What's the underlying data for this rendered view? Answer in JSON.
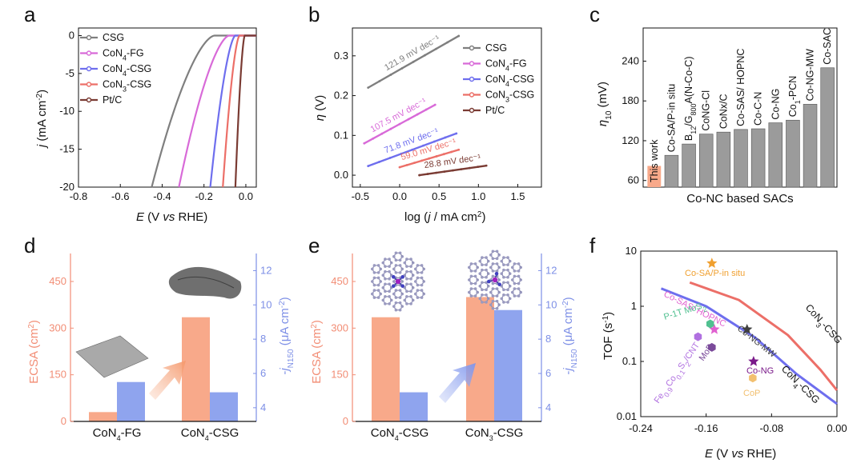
{
  "colors": {
    "CSG": "#7f7f7f",
    "CoN4-FG": "#d86ad8",
    "CoN4-CSG": "#6e6eee",
    "CoN3-CSG": "#ec6f68",
    "Pt/C": "#7a3b33",
    "bar_orange": "#f8a98a",
    "bar_blue": "#8fa4ee",
    "bar_gray": "#9b9b9b"
  },
  "panel_labels": [
    "a",
    "b",
    "c",
    "d",
    "e",
    "f"
  ],
  "chart_data": [
    {
      "panel": "a",
      "type": "line",
      "xlabel": "E  (V vs RHE)",
      "ylabel": "j (mA cm⁻²)",
      "xlim": [
        -0.8,
        0.05
      ],
      "ylim": [
        -20,
        1
      ],
      "xticks": [
        "-0.8",
        "-0.6",
        "-0.4",
        "-0.2",
        "0.0"
      ],
      "yticks": [
        "0",
        "-5",
        "-10",
        "-15",
        "-20"
      ],
      "legend_position": "top-left",
      "series": [
        {
          "name": "CSG",
          "onset": -0.15,
          "end": -0.45
        },
        {
          "name": "CoN4-FG",
          "onset": -0.08,
          "end": -0.32
        },
        {
          "name": "CoN4-CSG",
          "onset": -0.05,
          "end": -0.17
        },
        {
          "name": "CoN3-CSG",
          "onset": -0.03,
          "end": -0.11
        },
        {
          "name": "Pt/C",
          "onset": -0.005,
          "end": -0.05
        }
      ]
    },
    {
      "panel": "b",
      "type": "line",
      "xlabel": "log (j / mA cm²)",
      "ylabel": "η (V)",
      "xlim": [
        -0.6,
        1.8
      ],
      "ylim": [
        -0.03,
        0.37
      ],
      "xticks": [
        "-0.5",
        "0.0",
        "0.5",
        "1.0",
        "1.5"
      ],
      "yticks": [
        "0.0",
        "0.1",
        "0.2",
        "0.3"
      ],
      "legend_position": "right",
      "series": [
        {
          "name": "CSG",
          "x": [
            -0.4,
            0.75
          ],
          "y": [
            0.22,
            0.35
          ],
          "tafel": "121.9 mV dec⁻¹"
        },
        {
          "name": "CoN4-FG",
          "x": [
            -0.45,
            0.45
          ],
          "y": [
            0.08,
            0.177
          ],
          "tafel": "107.5 mV dec⁻¹"
        },
        {
          "name": "CoN4-CSG",
          "x": [
            -0.4,
            0.72
          ],
          "y": [
            0.023,
            0.105
          ],
          "tafel": "71.8 mV dec⁻¹"
        },
        {
          "name": "CoN3-CSG",
          "x": [
            0.0,
            0.75
          ],
          "y": [
            0.02,
            0.064
          ],
          "tafel": "59.0 mV dec⁻¹"
        },
        {
          "name": "Pt/C",
          "x": [
            0.25,
            1.1
          ],
          "y": [
            0.0,
            0.024
          ],
          "tafel": "28.8 mV dec⁻¹"
        }
      ]
    },
    {
      "panel": "c",
      "type": "bar",
      "xlabel": "Co-NC based SACs",
      "ylabel": "η10 (mV)",
      "ylim": [
        50,
        290
      ],
      "yticks": [
        "60",
        "120",
        "180",
        "240"
      ],
      "categories": [
        "This work",
        "Co-SA/P-in situ",
        "B12/G800A(N-Co-C)",
        "CoNG-Cl",
        "CoNx/C",
        "Co-SAS/ HOPNC",
        "Co-C-N",
        "Co-NG",
        "Co1-PCN",
        "Co-NG-MW",
        "Co-SAC"
      ],
      "values": [
        82,
        98,
        115,
        130,
        133,
        137,
        138,
        147,
        151,
        175,
        230
      ]
    },
    {
      "panel": "d",
      "type": "bar",
      "categories": [
        "CoN4-FG",
        "CoN4-CSG"
      ],
      "left_axis": {
        "label": "ECSA (cm²)",
        "ylim": [
          0,
          540
        ],
        "ticks": [
          "0",
          "150",
          "300",
          "450"
        ]
      },
      "right_axis": {
        "label": "-jN150 (μA cm⁻²)",
        "ylim": [
          3.2,
          13
        ],
        "ticks": [
          "4",
          "6",
          "8",
          "10",
          "12"
        ]
      },
      "series": [
        {
          "name": "ECSA",
          "values": [
            30,
            335
          ]
        },
        {
          "name": "jN150",
          "values": [
            5.5,
            4.9
          ]
        }
      ]
    },
    {
      "panel": "e",
      "type": "bar",
      "categories": [
        "CoN4-CSG",
        "CoN3-CSG"
      ],
      "left_axis": {
        "label": "ECSA (cm²)",
        "ylim": [
          0,
          540
        ],
        "ticks": [
          "0",
          "150",
          "300",
          "450"
        ]
      },
      "right_axis": {
        "label": "-jN150 (μA cm⁻²)",
        "ylim": [
          3.2,
          13
        ],
        "ticks": [
          "4",
          "6",
          "8",
          "10",
          "12"
        ]
      },
      "series": [
        {
          "name": "ECSA",
          "values": [
            335,
            400
          ]
        },
        {
          "name": "jN150",
          "values": [
            4.9,
            9.7
          ]
        }
      ]
    },
    {
      "panel": "f",
      "type": "scatter",
      "xlabel": "E (V vs RHE)",
      "ylabel": "TOF (s⁻¹)",
      "xlim": [
        -0.24,
        0.0
      ],
      "ylim_log10": [
        -2,
        1
      ],
      "xticks": [
        "-0.24",
        "-0.16",
        "-0.08",
        "0.00"
      ],
      "yticks": [
        "0.01",
        "0.1",
        "1",
        "10"
      ],
      "curves": [
        {
          "name": "CoN3-CSG",
          "x": [
            -0.18,
            -0.12,
            -0.06,
            -0.02,
            0.0
          ],
          "y": [
            2.7,
            1.3,
            0.3,
            0.07,
            0.03
          ]
        },
        {
          "name": "CoN4-CSG",
          "x": [
            -0.215,
            -0.16,
            -0.1,
            -0.05,
            0.0
          ],
          "y": [
            2.1,
            1.0,
            0.27,
            0.06,
            0.017
          ]
        }
      ],
      "points": [
        {
          "name": "Co-SA/P-in situ",
          "x": -0.153,
          "y": 6.0,
          "marker": "star",
          "color": "#f0a030"
        },
        {
          "name": "Co-SAS/ HOPNC",
          "x": -0.15,
          "y": 0.38,
          "marker": "star",
          "color": "#e060d0"
        },
        {
          "name": "Co-NG-MW",
          "x": -0.11,
          "y": 0.38,
          "marker": "star",
          "color": "#404040"
        },
        {
          "name": "Co-NG",
          "x": -0.102,
          "y": 0.1,
          "marker": "star",
          "color": "#7a1a8a"
        },
        {
          "name": "P-1T MoS2",
          "x": -0.155,
          "y": 0.48,
          "marker": "hexagon",
          "color": "#50c090"
        },
        {
          "name": "Fe0.9Co0.1S2/CNT",
          "x": -0.17,
          "y": 0.28,
          "marker": "hexagon",
          "color": "#b070e0"
        },
        {
          "name": "MoP",
          "x": -0.153,
          "y": 0.18,
          "marker": "hexagon",
          "color": "#7a4a9a"
        },
        {
          "name": "CoP",
          "x": -0.103,
          "y": 0.05,
          "marker": "hexagon",
          "color": "#f2c070"
        }
      ]
    }
  ],
  "text": {
    "a_leg": [
      "CSG",
      "CoN4-FG",
      "CoN4-CSG",
      "CoN3-CSG",
      "Pt/C"
    ],
    "b_leg": [
      "CSG",
      "CoN4-FG",
      "CoN4-CSG",
      "CoN3-CSG",
      "Pt/C"
    ],
    "f_curve_labels": [
      "CoN3-CSG",
      "CoN4-CSG"
    ]
  }
}
